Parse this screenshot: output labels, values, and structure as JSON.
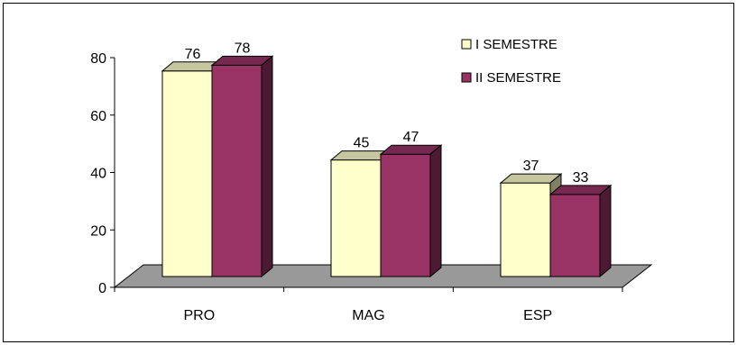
{
  "chart_data": {
    "type": "bar",
    "categories": [
      "PRO",
      "MAG",
      "ESP"
    ],
    "series": [
      {
        "name": "I SEMESTRE",
        "values": [
          76,
          45,
          37
        ],
        "color": "#FFFFCC"
      },
      {
        "name": "II SEMESTRE",
        "values": [
          78,
          47,
          33
        ],
        "color": "#993366"
      }
    ],
    "ylim": [
      0,
      80
    ],
    "yticks": [
      0,
      20,
      40,
      60,
      80
    ],
    "title": "",
    "xlabel": "",
    "ylabel": "",
    "legend": "top-right",
    "floor_color": "#999999",
    "style": "3d-clustered-column"
  }
}
